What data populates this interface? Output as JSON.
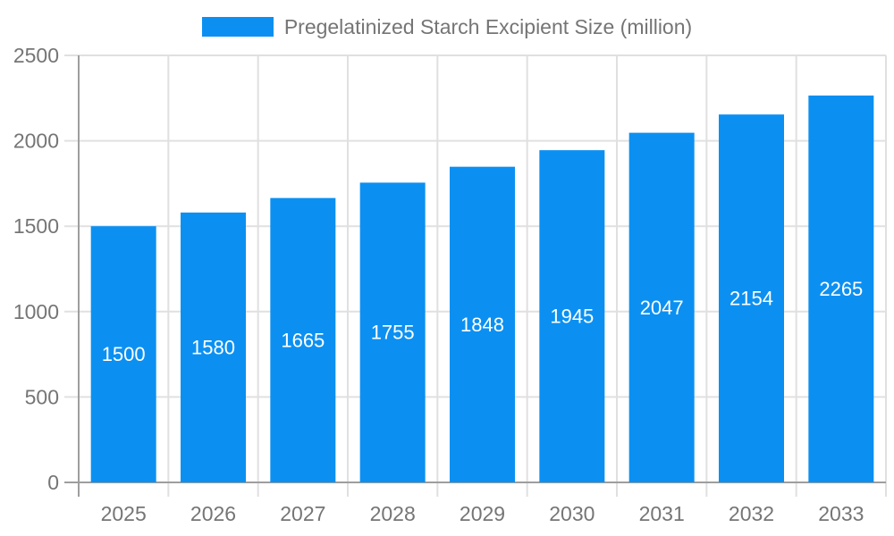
{
  "legend": {
    "label": "Pregelatinized Starch Excipient Size (million)"
  },
  "chart_data": {
    "type": "bar",
    "title": "Pregelatinized Starch Excipient Size (million)",
    "categories": [
      "2025",
      "2026",
      "2027",
      "2028",
      "2029",
      "2030",
      "2031",
      "2032",
      "2033"
    ],
    "values": [
      1500,
      1580,
      1665,
      1755,
      1848,
      1945,
      2047,
      2154,
      2265
    ],
    "xlabel": "",
    "ylabel": "",
    "ylim": [
      0,
      2500
    ],
    "yticks": [
      0,
      500,
      1000,
      1500,
      2000,
      2500
    ],
    "grid": true,
    "legend_position": "top",
    "value_labels": "inside-center"
  },
  "colors": {
    "bar": "#0b90f2",
    "grid": "#e0e0e0",
    "axis": "#9e9e9e",
    "tick_text": "#757575",
    "value_label_text": "#ffffff",
    "background": "#ffffff"
  }
}
